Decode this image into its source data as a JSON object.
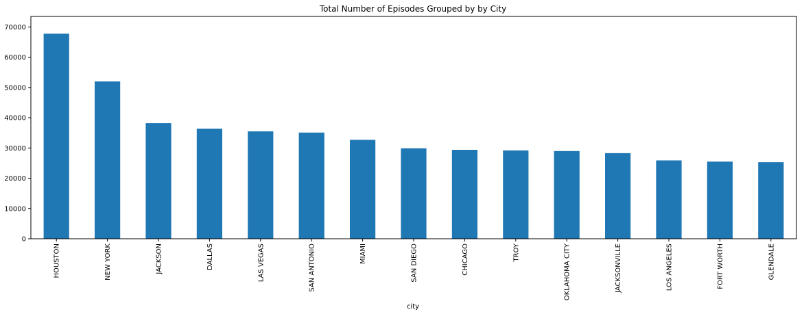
{
  "chart_data": {
    "type": "bar",
    "title": "Total Number of Episodes Grouped by by City",
    "xlabel": "city",
    "ylabel": "",
    "categories": [
      "HOUSTON",
      "NEW YORK",
      "JACKSON",
      "DALLAS",
      "LAS VEGAS",
      "SAN ANTONIO",
      "MIAMI",
      "SAN DIEGO",
      "CHICAGO",
      "TROY",
      "OKLAHOMA CITY",
      "JACKSONVILLE",
      "LOS ANGELES",
      "FORT WORTH",
      "GLENDALE"
    ],
    "values": [
      67800,
      52000,
      38200,
      36400,
      35500,
      35100,
      32700,
      29900,
      29400,
      29200,
      29000,
      28300,
      25900,
      25500,
      25300
    ],
    "ylim": [
      0,
      70000
    ],
    "yticks": [
      0,
      10000,
      20000,
      30000,
      40000,
      50000,
      60000,
      70000
    ],
    "ytick_labels": [
      "0",
      "10000",
      "20000",
      "30000",
      "40000",
      "50000",
      "60000",
      "70000"
    ],
    "grid": false,
    "legend": "none",
    "bar_color": "#1f77b4"
  }
}
